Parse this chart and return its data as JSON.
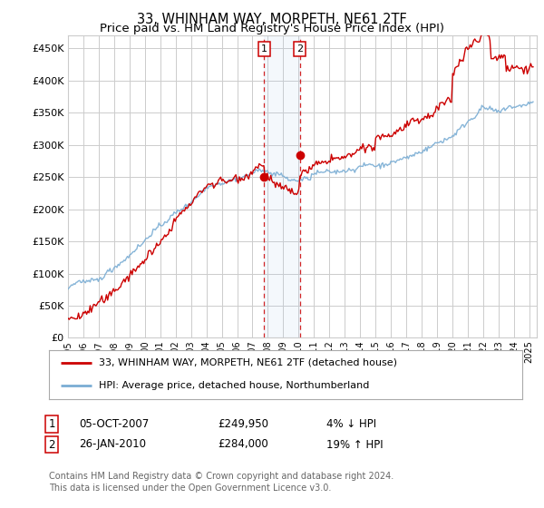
{
  "title": "33, WHINHAM WAY, MORPETH, NE61 2TF",
  "subtitle": "Price paid vs. HM Land Registry's House Price Index (HPI)",
  "ylabel_ticks": [
    "£0",
    "£50K",
    "£100K",
    "£150K",
    "£200K",
    "£250K",
    "£300K",
    "£350K",
    "£400K",
    "£450K"
  ],
  "ytick_values": [
    0,
    50000,
    100000,
    150000,
    200000,
    250000,
    300000,
    350000,
    400000,
    450000
  ],
  "ylim": [
    0,
    470000
  ],
  "xlim_start": 1995.0,
  "xlim_end": 2025.5,
  "background_color": "#ffffff",
  "grid_color": "#cccccc",
  "hpi_color": "#7aadd4",
  "price_color": "#cc0000",
  "transaction1_date": 2007.76,
  "transaction1_price": 249950,
  "transaction2_date": 2010.07,
  "transaction2_price": 284000,
  "legend_line1": "33, WHINHAM WAY, MORPETH, NE61 2TF (detached house)",
  "legend_line2": "HPI: Average price, detached house, Northumberland",
  "table_row1_num": "1",
  "table_row1_date": "05-OCT-2007",
  "table_row1_price": "£249,950",
  "table_row1_hpi": "4% ↓ HPI",
  "table_row2_num": "2",
  "table_row2_date": "26-JAN-2010",
  "table_row2_price": "£284,000",
  "table_row2_hpi": "19% ↑ HPI",
  "footer": "Contains HM Land Registry data © Crown copyright and database right 2024.\nThis data is licensed under the Open Government Licence v3.0.",
  "title_fontsize": 10.5,
  "subtitle_fontsize": 9.5
}
